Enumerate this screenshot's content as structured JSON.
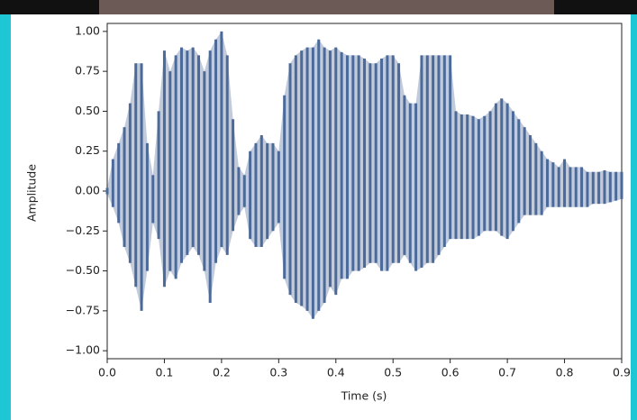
{
  "chart_data": {
    "type": "waveform",
    "x_label": "Time (s)",
    "y_label": "Amplitude",
    "x": [
      0,
      0.01,
      0.02,
      0.03,
      0.04,
      0.05,
      0.06,
      0.07,
      0.08,
      0.09,
      0.1,
      0.11,
      0.12,
      0.13,
      0.14,
      0.15,
      0.16,
      0.17,
      0.18,
      0.19,
      0.2,
      0.21,
      0.22,
      0.23,
      0.24,
      0.25,
      0.26,
      0.27,
      0.28,
      0.29,
      0.3,
      0.31,
      0.32,
      0.33,
      0.34,
      0.35,
      0.36,
      0.37,
      0.38,
      0.39,
      0.4,
      0.41,
      0.42,
      0.43,
      0.44,
      0.45,
      0.46,
      0.47,
      0.48,
      0.49,
      0.5,
      0.51,
      0.52,
      0.53,
      0.54,
      0.55,
      0.56,
      0.57,
      0.58,
      0.59,
      0.6,
      0.61,
      0.62,
      0.63,
      0.64,
      0.65,
      0.66,
      0.67,
      0.68,
      0.69,
      0.7,
      0.71,
      0.72,
      0.73,
      0.74,
      0.75,
      0.76,
      0.77,
      0.78,
      0.79,
      0.8,
      0.81,
      0.82,
      0.83,
      0.84,
      0.85,
      0.86,
      0.87,
      0.88,
      0.89,
      0.9
    ],
    "series": [
      {
        "color": "#4c6a99",
        "values": [
          0.02,
          0.2,
          0.3,
          0.4,
          0.55,
          0.8,
          0.8,
          0.3,
          0.1,
          0.5,
          0.88,
          0.75,
          0.85,
          0.9,
          0.88,
          0.9,
          0.85,
          0.75,
          0.88,
          0.95,
          1.0,
          0.85,
          0.45,
          0.15,
          0.1,
          0.25,
          0.3,
          0.35,
          0.3,
          0.3,
          0.25,
          0.6,
          0.8,
          0.85,
          0.88,
          0.9,
          0.9,
          0.95,
          0.9,
          0.88,
          0.9,
          0.87,
          0.85,
          0.85,
          0.85,
          0.83,
          0.8,
          0.8,
          0.83,
          0.85,
          0.85,
          0.8,
          0.6,
          0.55,
          0.55,
          0.85,
          0.85,
          0.85,
          0.85,
          0.85,
          0.85,
          0.5,
          0.48,
          0.48,
          0.47,
          0.45,
          0.47,
          0.5,
          0.55,
          0.58,
          0.55,
          0.5,
          0.45,
          0.4,
          0.35,
          0.3,
          0.25,
          0.2,
          0.18,
          0.15,
          0.2,
          0.15,
          0.15,
          0.15,
          0.12,
          0.12,
          0.12,
          0.13,
          0.12,
          0.12,
          0.12
        ]
      },
      {
        "color": "#4c6a99",
        "values": [
          -0.02,
          -0.1,
          -0.2,
          -0.35,
          -0.45,
          -0.6,
          -0.75,
          -0.5,
          -0.2,
          -0.3,
          -0.6,
          -0.5,
          -0.55,
          -0.45,
          -0.4,
          -0.35,
          -0.4,
          -0.5,
          -0.7,
          -0.45,
          -0.35,
          -0.4,
          -0.25,
          -0.15,
          -0.1,
          -0.3,
          -0.35,
          -0.35,
          -0.3,
          -0.25,
          -0.2,
          -0.55,
          -0.65,
          -0.7,
          -0.72,
          -0.75,
          -0.8,
          -0.75,
          -0.7,
          -0.6,
          -0.65,
          -0.55,
          -0.55,
          -0.5,
          -0.5,
          -0.48,
          -0.45,
          -0.45,
          -0.5,
          -0.5,
          -0.45,
          -0.45,
          -0.4,
          -0.45,
          -0.5,
          -0.48,
          -0.45,
          -0.45,
          -0.4,
          -0.35,
          -0.3,
          -0.3,
          -0.3,
          -0.3,
          -0.3,
          -0.28,
          -0.25,
          -0.25,
          -0.25,
          -0.28,
          -0.3,
          -0.25,
          -0.2,
          -0.15,
          -0.15,
          -0.15,
          -0.15,
          -0.1,
          -0.1,
          -0.1,
          -0.1,
          -0.1,
          -0.1,
          -0.1,
          -0.1,
          -0.08,
          -0.08,
          -0.08,
          -0.07,
          -0.06,
          -0.05
        ]
      }
    ],
    "xlim": [
      0,
      0.9
    ],
    "xticks": [
      {
        "value": 0,
        "label": "0.0"
      },
      0.1,
      0.2,
      0.3,
      0.4,
      0.5,
      0.6,
      0.7,
      0.8,
      0.9
    ],
    "ylim": [
      -1.05,
      1.05
    ],
    "yticks": [
      {
        "value": 1,
        "label": "1.00"
      },
      0.75,
      {
        "value": 0.5,
        "label": "0.50"
      },
      0.25,
      {
        "value": 0,
        "label": "0.00"
      },
      {
        "value": -0.25,
        "label": "−0.25"
      },
      {
        "value": -0.5,
        "label": "−0.50"
      },
      {
        "value": -0.75,
        "label": "−0.75"
      },
      {
        "value": -1,
        "label": "−1.00"
      }
    ]
  }
}
